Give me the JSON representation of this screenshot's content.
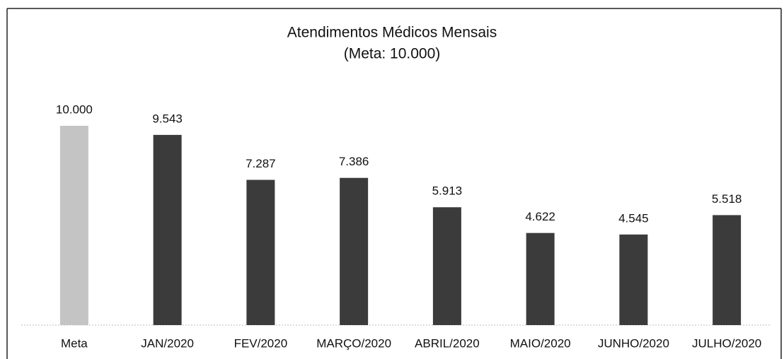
{
  "chart_data": {
    "type": "bar",
    "title": "Atendimentos Médicos Mensais",
    "subtitle": "(Meta: 10.000)",
    "categories": [
      "Meta",
      "JAN/2020",
      "FEV/2020",
      "MARÇO/2020",
      "ABRIL/2020",
      "MAIO/2020",
      "JUNHO/2020",
      "JULHO/2020"
    ],
    "values": [
      10000,
      9543,
      7287,
      7386,
      5913,
      4622,
      4545,
      5518
    ],
    "value_labels": [
      "10.000",
      "9.543",
      "7.287",
      "7.386",
      "5.913",
      "4.622",
      "4.545",
      "5.518"
    ],
    "colors": [
      "#c4c4c4",
      "#3b3b3b",
      "#3b3b3b",
      "#3b3b3b",
      "#3b3b3b",
      "#3b3b3b",
      "#3b3b3b",
      "#3b3b3b"
    ],
    "ylim": [
      0,
      10000
    ]
  }
}
